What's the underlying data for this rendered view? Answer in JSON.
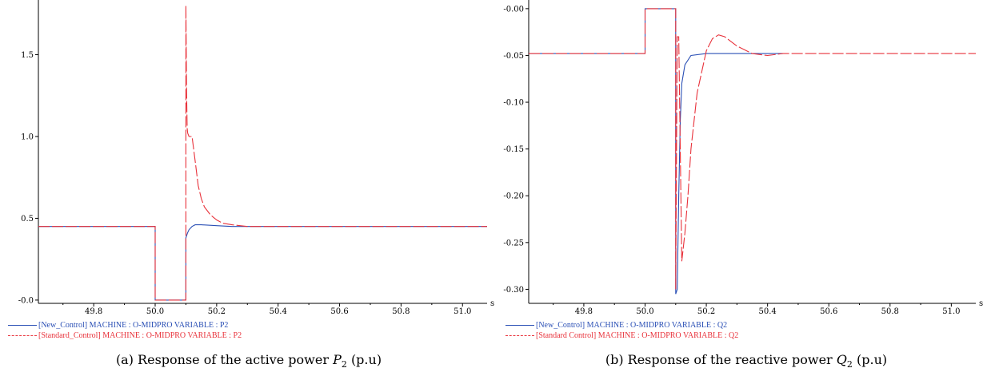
{
  "chart_data": [
    {
      "type": "line",
      "title": "",
      "caption": "(a) Response of the active power",
      "caption_symbol": "P",
      "caption_subscript": "2",
      "caption_unit": "(p.u)",
      "xunit": "s",
      "xlim": [
        49.62,
        51.08
      ],
      "ylim": [
        -0.02,
        1.81
      ],
      "xticks": [
        "49.8",
        "50.0",
        "50.2",
        "50.4",
        "50.6",
        "50.8",
        "51.0"
      ],
      "yticks": [
        "-0.0",
        "0.5",
        "1.0",
        "1.5"
      ],
      "grid": false,
      "legend_position": "bottom-left",
      "series": [
        {
          "name": "[New_Control]   MACHINE : O-MIDPRO VARIABLE : P2",
          "color": "#2a4fb5",
          "dash": "solid",
          "x": [
            49.62,
            50.0,
            50.0,
            50.1,
            50.1,
            50.105,
            50.11,
            50.12,
            50.13,
            50.15,
            50.2,
            50.25,
            51.08
          ],
          "y": [
            0.45,
            0.45,
            0.0,
            0.0,
            0.38,
            0.41,
            0.43,
            0.45,
            0.46,
            0.46,
            0.455,
            0.45,
            0.45
          ]
        },
        {
          "name": "[Standard_Control]   MACHINE : O-MIDPRO VARIABLE : P2",
          "color": "#e8313a",
          "dash": "dashed",
          "x": [
            49.62,
            50.0,
            50.0,
            50.1,
            50.1,
            50.1,
            50.102,
            50.104,
            50.106,
            50.11,
            50.12,
            50.13,
            50.14,
            50.15,
            50.16,
            50.18,
            50.2,
            50.22,
            50.25,
            50.3,
            51.08
          ],
          "y": [
            0.45,
            0.45,
            0.0,
            0.0,
            0.45,
            1.8,
            1.3,
            1.05,
            1.02,
            1.0,
            1.0,
            0.85,
            0.7,
            0.62,
            0.57,
            0.52,
            0.49,
            0.47,
            0.46,
            0.45,
            0.45
          ]
        }
      ]
    },
    {
      "type": "line",
      "title": "",
      "caption": "(b) Response of the reactive power",
      "caption_symbol": "Q",
      "caption_subscript": "2",
      "caption_unit": "(p.u)",
      "xunit": "s",
      "xlim": [
        49.62,
        51.08
      ],
      "ylim": [
        -0.315,
        0.005
      ],
      "xticks": [
        "49.8",
        "50.0",
        "50.2",
        "50.4",
        "50.6",
        "50.8",
        "51.0"
      ],
      "yticks": [
        "-0.00",
        "-0.05",
        "-0.10",
        "-0.15",
        "-0.20",
        "-0.25",
        "-0.30"
      ],
      "grid": false,
      "legend_position": "bottom-left",
      "series": [
        {
          "name": "[New_Control]   MACHINE : O-MIDPRO VARIABLE : Q2",
          "color": "#2a4fb5",
          "dash": "solid",
          "x": [
            49.62,
            50.0,
            50.0,
            50.1,
            50.1,
            50.105,
            50.11,
            50.115,
            50.12,
            50.13,
            50.15,
            50.2,
            50.3,
            50.45
          ],
          "y": [
            -0.048,
            -0.048,
            0.0,
            0.0,
            -0.305,
            -0.3,
            -0.2,
            -0.12,
            -0.08,
            -0.06,
            -0.05,
            -0.048,
            -0.048,
            -0.048
          ]
        },
        {
          "name": "[Standard Control]   MACHINE : O-MIDPRO VARIABLE : Q2",
          "color": "#e8313a",
          "dash": "dashed",
          "x": [
            49.62,
            50.0,
            50.0,
            50.1,
            50.1,
            50.105,
            50.11,
            50.115,
            50.12,
            50.13,
            50.14,
            50.15,
            50.17,
            50.2,
            50.22,
            50.24,
            50.26,
            50.3,
            50.35,
            50.4,
            50.45,
            51.08
          ],
          "y": [
            -0.048,
            -0.048,
            0.0,
            0.0,
            -0.3,
            -0.03,
            -0.03,
            -0.15,
            -0.27,
            -0.24,
            -0.2,
            -0.15,
            -0.09,
            -0.045,
            -0.032,
            -0.028,
            -0.03,
            -0.04,
            -0.048,
            -0.05,
            -0.048,
            -0.048
          ]
        }
      ]
    }
  ]
}
